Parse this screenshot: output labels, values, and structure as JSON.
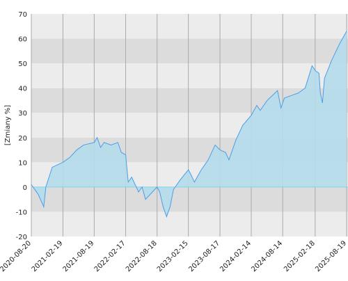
{
  "chart_data": {
    "type": "area",
    "ylabel": "[Zmiany %]",
    "x": [
      "2020-08-20",
      "2020-09-29",
      "2020-10-31",
      "2020-11-12",
      "2020-12-19",
      "2021-02-19",
      "2021-03-31",
      "2021-05-10",
      "2021-06-19",
      "2021-08-19",
      "2021-09-05",
      "2021-09-25",
      "2021-10-15",
      "2021-11-24",
      "2022-01-03",
      "2022-01-23",
      "2022-02-17",
      "2022-03-04",
      "2022-03-24",
      "2022-05-03",
      "2022-05-23",
      "2022-06-12",
      "2022-07-22",
      "2022-08-18",
      "2022-09-02",
      "2022-09-22",
      "2022-10-12",
      "2022-11-01",
      "2022-11-21",
      "2022-12-31",
      "2023-02-15",
      "2023-03-02",
      "2023-03-22",
      "2023-05-01",
      "2023-06-10",
      "2023-07-20",
      "2023-08-17",
      "2023-09-18",
      "2023-10-08",
      "2023-11-17",
      "2023-12-27",
      "2024-02-14",
      "2024-03-17",
      "2024-04-06",
      "2024-05-16",
      "2024-07-15",
      "2024-08-04",
      "2024-08-24",
      "2024-10-03",
      "2024-11-12",
      "2024-12-22",
      "2025-01-31",
      "2025-02-20",
      "2025-03-12",
      "2025-03-20",
      "2025-04-01",
      "2025-04-13",
      "2025-05-23",
      "2025-07-10",
      "2025-08-19"
    ],
    "series": [
      {
        "color": "#4a9ee8",
        "fill": "#b5dcec",
        "values": [
          1,
          -3,
          -8,
          0,
          8,
          10,
          12,
          15,
          17,
          18,
          20,
          16,
          18,
          17,
          18,
          14,
          13,
          2,
          4,
          -2,
          0,
          -5,
          -2,
          0,
          -2,
          -8,
          -12,
          -8,
          -1,
          3,
          7,
          5,
          2,
          7,
          11,
          17,
          15,
          14,
          11,
          19,
          25,
          29,
          33,
          31,
          35,
          39,
          32,
          36,
          37,
          38,
          40,
          49,
          47,
          46,
          38,
          34,
          44,
          51,
          58,
          63
        ]
      }
    ],
    "xlim": [
      "2020-08-20",
      "2025-08-27"
    ],
    "xticks": [
      "2020-08-20",
      "2021-02-19",
      "2021-08-19",
      "2022-02-17",
      "2022-08-18",
      "2023-02-15",
      "2023-08-17",
      "2024-02-14",
      "2024-08-14",
      "2025-02-18",
      "2025-08-19"
    ],
    "ylim": [
      -20,
      70
    ],
    "yticks": [
      -20,
      -10,
      0,
      10,
      20,
      30,
      40,
      50,
      60,
      70
    ],
    "grid": true,
    "zero_line_color": "#7fd6e6"
  }
}
